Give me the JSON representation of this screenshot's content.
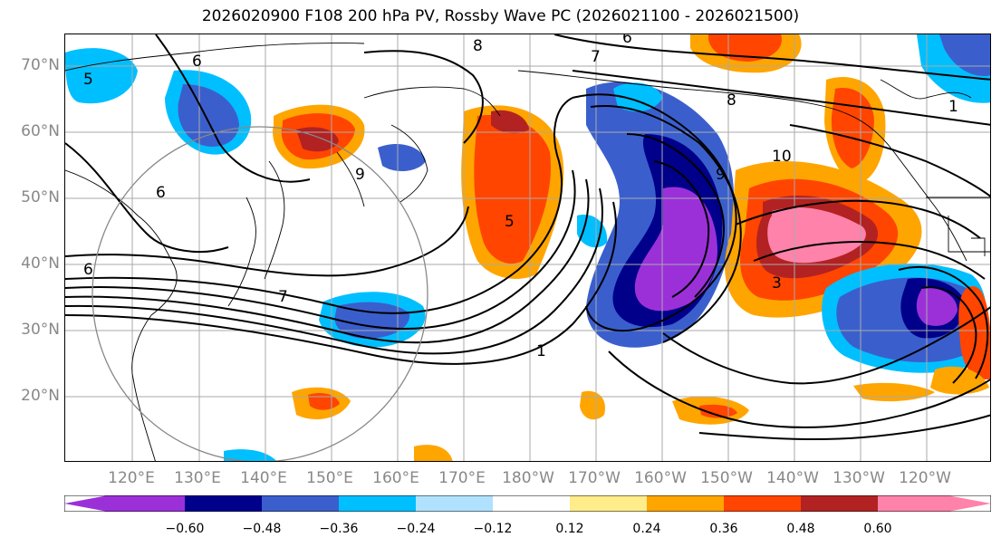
{
  "title": "2026020900 F108 200 hPa PV, Rossby Wave PC (2026021100 - 2026021500)",
  "latitude_labels": [
    "70°N",
    "60°N",
    "50°N",
    "40°N",
    "30°N",
    "20°N"
  ],
  "longitude_labels": [
    "120°E",
    "130°E",
    "140°E",
    "150°E",
    "160°E",
    "170°E",
    "180°W",
    "170°W",
    "160°W",
    "150°W",
    "140°W",
    "130°W",
    "120°W"
  ],
  "colorbar": {
    "colors": [
      "#9b30d9",
      "#00008b",
      "#3a5fcd",
      "#00bfff",
      "#b0e2ff",
      "#ffffff",
      "#ffec8b",
      "#ffa500",
      "#ff4500",
      "#b22222",
      "#ff82ab"
    ],
    "tick_labels": [
      "−0.60",
      "−0.48",
      "−0.36",
      "−0.24",
      "−0.12",
      "0.12",
      "0.24",
      "0.36",
      "0.48",
      "0.60"
    ]
  },
  "contour_labels": [
    "8",
    "7",
    "6",
    "8",
    "10",
    "9",
    "5",
    "6",
    "5",
    "6",
    "7",
    "1",
    "6",
    "3",
    "9",
    "1"
  ],
  "map": {
    "region": "North Pacific",
    "lon_range": [
      "112°E",
      "~113°W"
    ],
    "lat_range": [
      "10°N",
      "75°N"
    ],
    "fill_field": "Rossby Wave PC",
    "contour_field": "200 hPa PV",
    "contour_color": "#000000",
    "gridlines": true,
    "coastlines": true
  }
}
